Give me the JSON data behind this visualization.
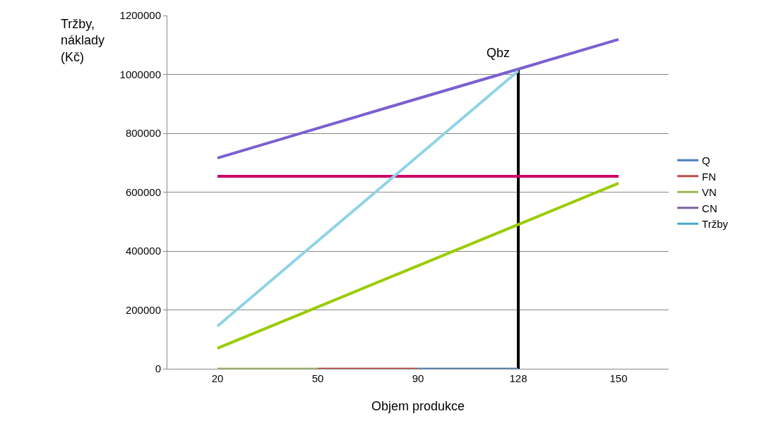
{
  "chart_data": {
    "type": "line",
    "xlabel": "Objem produkce",
    "ylabel": "Tržby,\nnáklady\n(Kč)",
    "categories": [
      "20",
      "50",
      "90",
      "128",
      "150"
    ],
    "ylim": [
      0,
      1200000
    ],
    "yticks": [
      0,
      200000,
      400000,
      600000,
      800000,
      1000000,
      1200000
    ],
    "grid": "y",
    "legend": "right",
    "series": [
      {
        "name": "Q",
        "color": "#4a7ebb",
        "values": [
          null,
          null,
          0,
          0,
          null
        ]
      },
      {
        "name": "FN",
        "color": "#be4b48",
        "values": [
          null,
          0,
          0,
          null,
          null
        ]
      },
      {
        "name": "VN",
        "color": "#98b954",
        "values": [
          0,
          0,
          null,
          null,
          null
        ]
      },
      {
        "name": "CN",
        "color": "#7d60a0",
        "values": [
          null,
          null,
          null,
          null,
          null
        ]
      },
      {
        "name": "Tržby",
        "color": "#46aac5",
        "values": [
          null,
          null,
          null,
          null,
          null
        ]
      },
      {
        "color": "#cc0066",
        "values": [
          654000,
          654000,
          654000,
          654000,
          654000
        ]
      },
      {
        "color": "#7b5fd0",
        "values": [
          716000,
          817000,
          918000,
          1018000,
          1119000
        ]
      },
      {
        "color": "#99cc00",
        "values": [
          70000,
          210000,
          350000,
          490000,
          630000
        ]
      },
      {
        "color": "#8fd3e6",
        "values": [
          145000,
          434000,
          723000,
          1012000,
          null
        ]
      },
      {
        "type": "bar",
        "color": "#000000",
        "values": [
          null,
          null,
          null,
          1018000,
          null
        ]
      }
    ],
    "annotations": [
      "Qbz"
    ]
  }
}
